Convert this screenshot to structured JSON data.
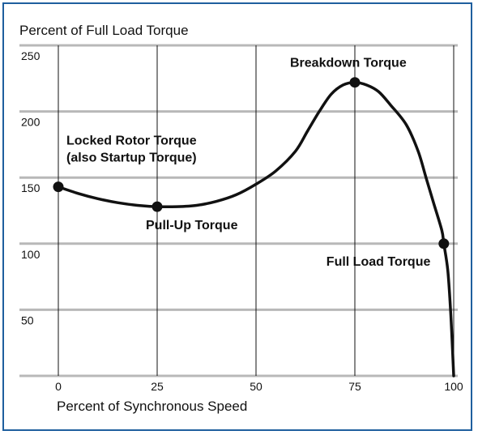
{
  "chart_data": {
    "type": "line",
    "ylabel": "Percent of Full Load Torque",
    "xlabel": "Percent of Synchronous Speed",
    "xlim": [
      0,
      100
    ],
    "ylim": [
      0,
      250
    ],
    "x_ticks": [
      0,
      25,
      50,
      75,
      100
    ],
    "y_ticks": [
      50,
      100,
      150,
      200,
      250
    ],
    "grid": "horizontal",
    "colors": {
      "frame": "#1f5f9e",
      "grid": "#b8b8b8",
      "curve": "#111111"
    },
    "curve": [
      [
        0,
        143
      ],
      [
        5,
        138
      ],
      [
        10,
        134
      ],
      [
        15,
        131
      ],
      [
        20,
        129
      ],
      [
        25,
        128
      ],
      [
        30,
        128
      ],
      [
        35,
        129
      ],
      [
        40,
        132
      ],
      [
        45,
        137
      ],
      [
        50,
        145
      ],
      [
        55,
        155
      ],
      [
        60,
        170
      ],
      [
        63,
        185
      ],
      [
        66,
        200
      ],
      [
        69,
        213
      ],
      [
        72,
        220
      ],
      [
        75,
        222
      ],
      [
        78,
        220
      ],
      [
        81,
        215
      ],
      [
        84,
        205
      ],
      [
        88,
        190
      ],
      [
        91,
        170
      ],
      [
        93,
        150
      ],
      [
        95,
        130
      ],
      [
        97,
        110
      ],
      [
        97.5,
        100
      ],
      [
        98.5,
        80
      ],
      [
        99.2,
        50
      ],
      [
        99.7,
        20
      ],
      [
        100,
        0
      ]
    ],
    "points": [
      {
        "label": "Locked Rotor Torque",
        "label2": "(also Startup Torque)",
        "x": 0,
        "y": 143
      },
      {
        "label": "Pull-Up Torque",
        "x": 25,
        "y": 128
      },
      {
        "label": "Breakdown Torque",
        "x": 75,
        "y": 222
      },
      {
        "label": "Full Load Torque",
        "x": 97.5,
        "y": 100
      }
    ]
  }
}
